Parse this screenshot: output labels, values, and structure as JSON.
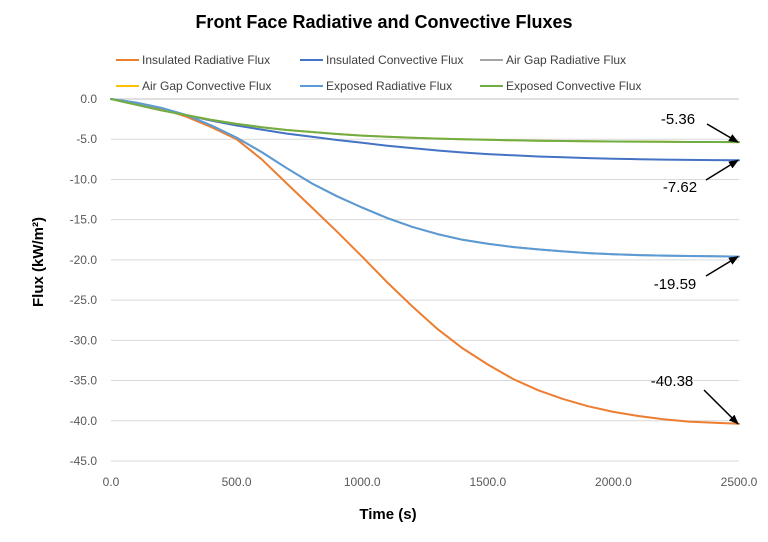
{
  "chart_data": {
    "type": "line",
    "title": "Front Face Radiative and Convective Fluxes",
    "xlabel": "Time (s)",
    "ylabel": "Flux (kW/m²)",
    "xlim": [
      0,
      2500
    ],
    "ylim": [
      -45,
      0
    ],
    "x_ticks": [
      "0.0",
      "500.0",
      "1000.0",
      "1500.0",
      "2000.0",
      "2500.0"
    ],
    "y_ticks": [
      "0.0",
      "-5.0",
      "-10.0",
      "-15.0",
      "-20.0",
      "-25.0",
      "-30.0",
      "-35.0",
      "-40.0",
      "-45.0"
    ],
    "grid": true,
    "legend_position": "top",
    "x": [
      0,
      100,
      200,
      300,
      400,
      500,
      600,
      700,
      800,
      900,
      1000,
      1100,
      1200,
      1300,
      1400,
      1500,
      1600,
      1700,
      1800,
      1900,
      2000,
      2100,
      2200,
      2300,
      2400,
      2500
    ],
    "series": [
      {
        "name": "Insulated Radiative Flux",
        "color": "#ED7D31",
        "values": [
          0,
          -0.5,
          -1.2,
          -2.2,
          -3.5,
          -5.0,
          -7.5,
          -10.5,
          -13.5,
          -16.5,
          -19.6,
          -22.8,
          -25.8,
          -28.6,
          -31.0,
          -33.0,
          -34.8,
          -36.2,
          -37.3,
          -38.2,
          -38.9,
          -39.4,
          -39.8,
          -40.1,
          -40.25,
          -40.38
        ]
      },
      {
        "name": "Insulated Convective Flux",
        "color": "#4472C4",
        "values": [
          0,
          -0.7,
          -1.4,
          -2.0,
          -2.7,
          -3.3,
          -3.8,
          -4.3,
          -4.7,
          -5.1,
          -5.45,
          -5.8,
          -6.1,
          -6.4,
          -6.65,
          -6.85,
          -7.0,
          -7.15,
          -7.25,
          -7.35,
          -7.42,
          -7.48,
          -7.53,
          -7.57,
          -7.6,
          -7.62
        ]
      },
      {
        "name": "Air Gap Radiative Flux",
        "color": "#A5A5A5",
        "values": [
          0,
          -0.45,
          -1.1,
          -2.0,
          -3.3,
          -4.8,
          -6.6,
          -8.6,
          -10.5,
          -12.1,
          -13.5,
          -14.8,
          -15.9,
          -16.8,
          -17.5,
          -18.0,
          -18.4,
          -18.7,
          -18.95,
          -19.15,
          -19.3,
          -19.4,
          -19.47,
          -19.52,
          -19.56,
          -19.59
        ]
      },
      {
        "name": "Air Gap Convective Flux",
        "color": "#FFC000",
        "values": [
          0,
          -0.7,
          -1.4,
          -2.0,
          -2.6,
          -3.1,
          -3.5,
          -3.85,
          -4.1,
          -4.35,
          -4.55,
          -4.7,
          -4.82,
          -4.92,
          -5.0,
          -5.07,
          -5.13,
          -5.18,
          -5.22,
          -5.25,
          -5.28,
          -5.3,
          -5.32,
          -5.34,
          -5.35,
          -5.36
        ]
      },
      {
        "name": "Exposed Radiative Flux",
        "color": "#5B9BD5",
        "values": [
          0,
          -0.45,
          -1.1,
          -2.0,
          -3.3,
          -4.8,
          -6.6,
          -8.6,
          -10.5,
          -12.1,
          -13.5,
          -14.8,
          -15.9,
          -16.8,
          -17.5,
          -18.0,
          -18.4,
          -18.7,
          -18.95,
          -19.15,
          -19.3,
          -19.4,
          -19.47,
          -19.52,
          -19.56,
          -19.59
        ]
      },
      {
        "name": "Exposed Convective Flux",
        "color": "#70AD47",
        "values": [
          0,
          -0.7,
          -1.4,
          -2.0,
          -2.6,
          -3.1,
          -3.5,
          -3.85,
          -4.1,
          -4.35,
          -4.55,
          -4.7,
          -4.82,
          -4.92,
          -5.0,
          -5.07,
          -5.13,
          -5.18,
          -5.22,
          -5.25,
          -5.28,
          -5.3,
          -5.32,
          -5.34,
          -5.35,
          -5.36
        ]
      }
    ],
    "annotations": [
      {
        "text": "-5.36",
        "x": 2500,
        "y": -5.36
      },
      {
        "text": "-7.62",
        "x": 2500,
        "y": -7.62
      },
      {
        "text": "-19.59",
        "x": 2500,
        "y": -19.59
      },
      {
        "text": "-40.38",
        "x": 2500,
        "y": -40.38
      }
    ]
  }
}
